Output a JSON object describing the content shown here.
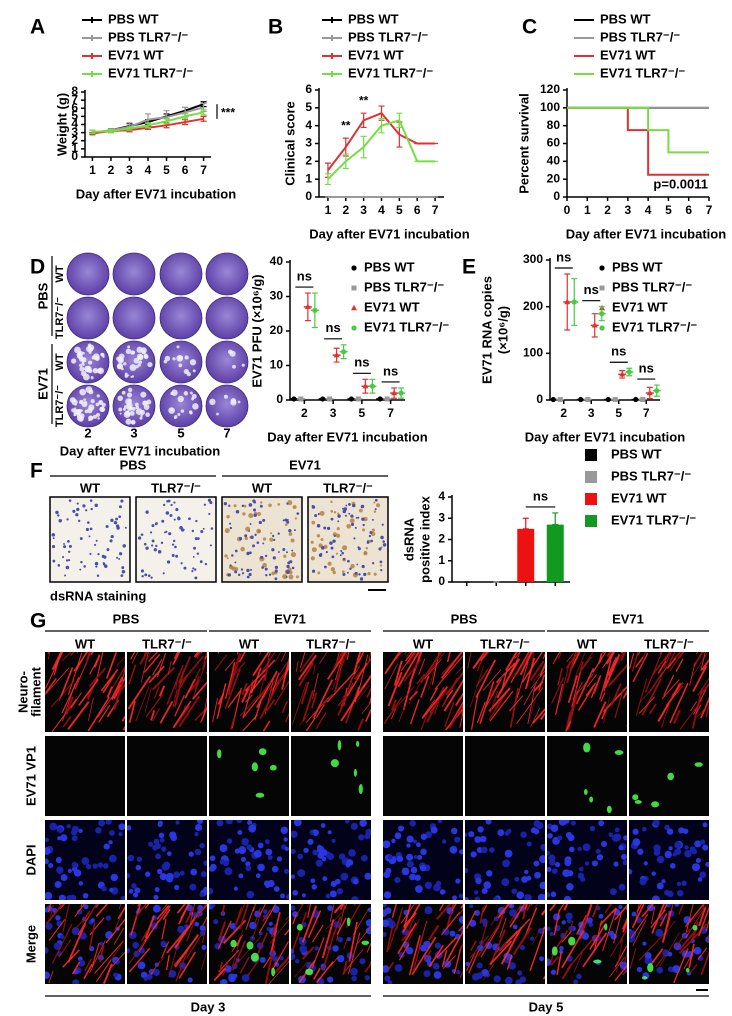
{
  "chart_data": [
    {
      "panel": "A",
      "type": "line",
      "xlabel": "Day after EV71 incubation",
      "ylabel": "Weight (g)",
      "x": [
        1,
        2,
        3,
        4,
        5,
        6,
        7
      ],
      "xlim": [
        0.6,
        7.4
      ],
      "xticks": [
        1,
        2,
        3,
        4,
        5,
        6,
        7
      ],
      "ylim": [
        0,
        8
      ],
      "yticks": [
        0,
        1,
        2,
        3,
        4,
        5,
        6,
        7,
        8
      ],
      "annotations": [
        "***"
      ],
      "series": [
        {
          "name": "PBS WT",
          "color": "#000000",
          "values": [
            2.9,
            3.3,
            3.8,
            4.3,
            5.0,
            5.7,
            6.5
          ],
          "errors": [
            0.1,
            0.2,
            0.3,
            0.3,
            0.3,
            0.4,
            0.3
          ]
        },
        {
          "name": "PBS TLR7⁻/⁻",
          "color": "#999999",
          "values": [
            3.0,
            3.3,
            3.7,
            4.6,
            4.9,
            5.5,
            6.1
          ],
          "errors": [
            0.3,
            0.2,
            0.5,
            0.7,
            0.8,
            0.6,
            0.5
          ]
        },
        {
          "name": "EV71 WT",
          "color": "#dd3333",
          "values": [
            2.9,
            3.2,
            3.3,
            3.6,
            3.9,
            4.3,
            4.7
          ],
          "errors": [
            0.1,
            0.2,
            0.2,
            0.2,
            0.3,
            0.3,
            0.3
          ]
        },
        {
          "name": "EV71 TLR7⁻/⁻",
          "color": "#77dd44",
          "values": [
            3.1,
            3.2,
            3.5,
            3.9,
            4.4,
            5.0,
            5.5
          ],
          "errors": [
            0.2,
            0.2,
            0.2,
            0.3,
            0.3,
            0.3,
            0.3
          ]
        }
      ]
    },
    {
      "panel": "B",
      "type": "line",
      "xlabel": "Day after EV71 incubation",
      "ylabel": "Clinical score",
      "x": [
        1,
        2,
        3,
        4,
        5,
        6,
        7
      ],
      "xlim": [
        0.5,
        7.5
      ],
      "xticks": [
        1,
        2,
        3,
        4,
        5,
        6,
        7
      ],
      "ylim": [
        0,
        6
      ],
      "yticks": [
        0,
        1,
        2,
        3,
        4,
        5,
        6
      ],
      "annotations": [
        "**",
        "**"
      ],
      "series": [
        {
          "name": "PBS WT",
          "color": "#000000",
          "values": [
            0,
            0,
            0,
            0,
            0,
            0,
            0
          ],
          "errors": [
            0,
            0,
            0,
            0,
            0,
            0,
            0
          ]
        },
        {
          "name": "PBS TLR7⁻/⁻",
          "color": "#999999",
          "values": [
            0,
            0,
            0,
            0,
            0,
            0,
            0
          ],
          "errors": [
            0,
            0,
            0,
            0,
            0,
            0,
            0
          ]
        },
        {
          "name": "EV71 WT",
          "color": "#dd3333",
          "values": [
            1.5,
            2.8,
            4.3,
            4.7,
            3.5,
            3.0,
            3.0
          ],
          "errors": [
            0.4,
            0.5,
            0.4,
            0.4,
            0.7,
            0,
            0
          ]
        },
        {
          "name": "EV71 TLR7⁻/⁻",
          "color": "#77dd44",
          "values": [
            1.0,
            2.0,
            2.8,
            4.0,
            4.3,
            2.0,
            2.0
          ],
          "errors": [
            0.3,
            0.4,
            0.6,
            0.4,
            0.4,
            0,
            0
          ]
        }
      ]
    },
    {
      "panel": "C",
      "type": "step",
      "xlabel": "Day after EV71 incubation",
      "ylabel": "Percent survival",
      "x": [
        0,
        1,
        2,
        3,
        4,
        5,
        6,
        7
      ],
      "xlim": [
        0,
        7
      ],
      "xticks": [
        0,
        1,
        2,
        3,
        4,
        5,
        6,
        7
      ],
      "ylim": [
        0,
        120
      ],
      "yticks": [
        0,
        20,
        40,
        60,
        80,
        100,
        120
      ],
      "annotations": [
        "p=0.0011"
      ],
      "series": [
        {
          "name": "PBS WT",
          "color": "#000000",
          "values": [
            100,
            100,
            100,
            100,
            100,
            100,
            100,
            100
          ]
        },
        {
          "name": "PBS TLR7⁻/⁻",
          "color": "#999999",
          "values": [
            100,
            100,
            100,
            100,
            100,
            100,
            100,
            100
          ]
        },
        {
          "name": "EV71 WT",
          "color": "#dd3333",
          "values": [
            100,
            100,
            100,
            75,
            25,
            25,
            25,
            25
          ]
        },
        {
          "name": "EV71 TLR7⁻/⁻",
          "color": "#77dd44",
          "values": [
            100,
            100,
            100,
            100,
            75,
            50,
            50,
            50
          ]
        }
      ]
    },
    {
      "panel": "D",
      "type": "dot",
      "xlabel": "Day after EV71 incubation",
      "ylabel": "EV71 PFU (×10⁶/g)",
      "categories": [
        "2",
        "3",
        "5",
        "7"
      ],
      "ylim": [
        0,
        40
      ],
      "yticks": [
        0,
        10,
        20,
        30,
        40
      ],
      "annotations": [
        "ns",
        "ns",
        "ns",
        "ns"
      ],
      "series": [
        {
          "name": "PBS WT",
          "color": "#000000",
          "marker": "circle",
          "values": [
            0.3,
            0.3,
            0.3,
            0.3
          ],
          "errors": [
            0,
            0,
            0,
            0
          ]
        },
        {
          "name": "PBS TLR7⁻/⁻",
          "color": "#999999",
          "marker": "square",
          "values": [
            0.3,
            0.3,
            0.3,
            0.3
          ],
          "errors": [
            0,
            0,
            0,
            0
          ]
        },
        {
          "name": "EV71 WT",
          "color": "#dd3333",
          "marker": "triangle",
          "values": [
            27,
            13,
            4,
            2
          ],
          "errors": [
            4,
            2,
            2,
            1.5
          ]
        },
        {
          "name": "EV71 TLR7⁻/⁻",
          "color": "#44cc44",
          "marker": "circle",
          "values": [
            26,
            14,
            4,
            2
          ],
          "errors": [
            5,
            2,
            2,
            1.5
          ]
        }
      ]
    },
    {
      "panel": "E",
      "type": "dot",
      "xlabel": "Day after EV71 incubation",
      "ylabel": [
        "EV71 RNA copies",
        "(×10⁶/g)"
      ],
      "categories": [
        "2",
        "3",
        "5",
        "7"
      ],
      "ylim": [
        0,
        300
      ],
      "yticks": [
        0,
        100,
        200,
        300
      ],
      "annotations": [
        "ns",
        "ns",
        "ns",
        "ns"
      ],
      "series": [
        {
          "name": "PBS WT",
          "color": "#000000",
          "marker": "circle",
          "values": [
            1,
            1,
            1,
            1
          ],
          "errors": [
            0,
            0,
            0,
            0
          ]
        },
        {
          "name": "PBS TLR7⁻/⁻",
          "color": "#999999",
          "marker": "square",
          "values": [
            1,
            1,
            1,
            1
          ],
          "errors": [
            0,
            0,
            0,
            0
          ]
        },
        {
          "name": "EV71 WT",
          "color": "#dd3333",
          "marker": "triangle",
          "values": [
            210,
            160,
            55,
            15
          ],
          "errors": [
            60,
            25,
            8,
            12
          ]
        },
        {
          "name": "EV71 TLR7⁻/⁻",
          "color": "#44cc44",
          "marker": "circle",
          "values": [
            210,
            185,
            60,
            20
          ],
          "errors": [
            50,
            15,
            8,
            12
          ]
        }
      ]
    },
    {
      "panel": "F",
      "type": "bar",
      "ylabel": [
        "dsRNA",
        "positive index"
      ],
      "categories": [
        null
      ],
      "ylim": [
        0,
        4
      ],
      "yticks": [
        0,
        1,
        2,
        3,
        4
      ],
      "annotations": [
        "ns"
      ],
      "series": [
        {
          "name": "PBS WT",
          "color": "#000000",
          "values": [
            0
          ],
          "errors": [
            0
          ]
        },
        {
          "name": "PBS TLR7⁻/⁻",
          "color": "#999999",
          "values": [
            0
          ],
          "errors": [
            0
          ]
        },
        {
          "name": "EV71 WT",
          "color": "#ee1111",
          "values": [
            2.5
          ],
          "errors": [
            0.5
          ]
        },
        {
          "name": "EV71 TLR7⁻/⁻",
          "color": "#119922",
          "values": [
            2.7
          ],
          "errors": [
            0.55
          ]
        }
      ]
    }
  ],
  "plaque_panel": {
    "row_groups": [
      "PBS",
      "EV71"
    ],
    "row_labels": [
      "WT",
      "TLR7⁻/⁻",
      "WT",
      "TLR7⁻/⁻"
    ],
    "columns": [
      "2",
      "3",
      "5",
      "7"
    ],
    "xlabel": "Day after EV71 incubation"
  },
  "staining_panel": {
    "groups": [
      "PBS",
      "EV71"
    ],
    "subgroups": [
      "WT",
      "TLR7⁻/⁻",
      "WT",
      "TLR7⁻/⁻"
    ],
    "caption": "dsRNA staining"
  },
  "if_panel": {
    "panel": "G",
    "groups": [
      "PBS",
      "EV71",
      "PBS",
      "EV71"
    ],
    "subgroups": [
      "WT",
      "TLR7⁻/⁻",
      "WT",
      "TLR7⁻/⁻",
      "WT",
      "TLR7⁻/⁻",
      "WT",
      "TLR7⁻/⁻"
    ],
    "rows": [
      [
        "Neuro-",
        "filament"
      ],
      [
        "EV71 VP1"
      ],
      [
        "DAPI"
      ],
      [
        "Merge"
      ]
    ],
    "days": [
      "Day 3",
      "Day 5"
    ]
  }
}
